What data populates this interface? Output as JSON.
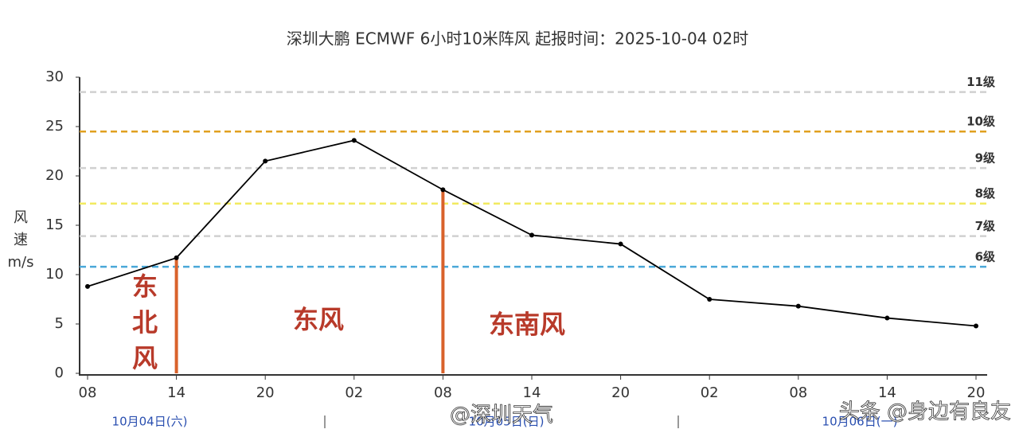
{
  "chart_data": {
    "type": "line",
    "title": "深圳大鹏 ECMWF 6小时10米阵风 起报时间：2025-10-04 02时",
    "ylabel_lines": [
      "风",
      "速",
      "m/s"
    ],
    "categories": [
      "08",
      "14",
      "20",
      "02",
      "08",
      "14",
      "20",
      "02",
      "08",
      "14",
      "20"
    ],
    "values": [
      8.8,
      11.7,
      21.5,
      23.6,
      18.6,
      14.0,
      13.1,
      7.5,
      6.8,
      5.6,
      4.8
    ],
    "color": "#000000",
    "ylim": [
      0,
      30
    ],
    "yticks": [
      0,
      5,
      10,
      15,
      20,
      25,
      30
    ],
    "levels": [
      {
        "label": "6级",
        "value": 10.8,
        "color": "#4aa8d8"
      },
      {
        "label": "7级",
        "value": 13.9,
        "color": "#d0d0d0"
      },
      {
        "label": "8级",
        "value": 17.2,
        "color": "#f2ea60"
      },
      {
        "label": "9级",
        "value": 20.8,
        "color": "#d0d0d0"
      },
      {
        "label": "10级",
        "value": 24.5,
        "color": "#e0a020"
      },
      {
        "label": "11级",
        "value": 28.5,
        "color": "#d0d0d0"
      }
    ],
    "wind_bars": {
      "indices": [
        1,
        4
      ],
      "color": "#d9622b"
    },
    "wind_regions": [
      "东北风",
      "东风",
      "东南风"
    ],
    "dates": [
      "10月04日(六)",
      "10月05日(日)",
      "10月06日(一)"
    ],
    "watermarks": [
      "@深圳天气",
      "头条 @身边有良友"
    ]
  }
}
